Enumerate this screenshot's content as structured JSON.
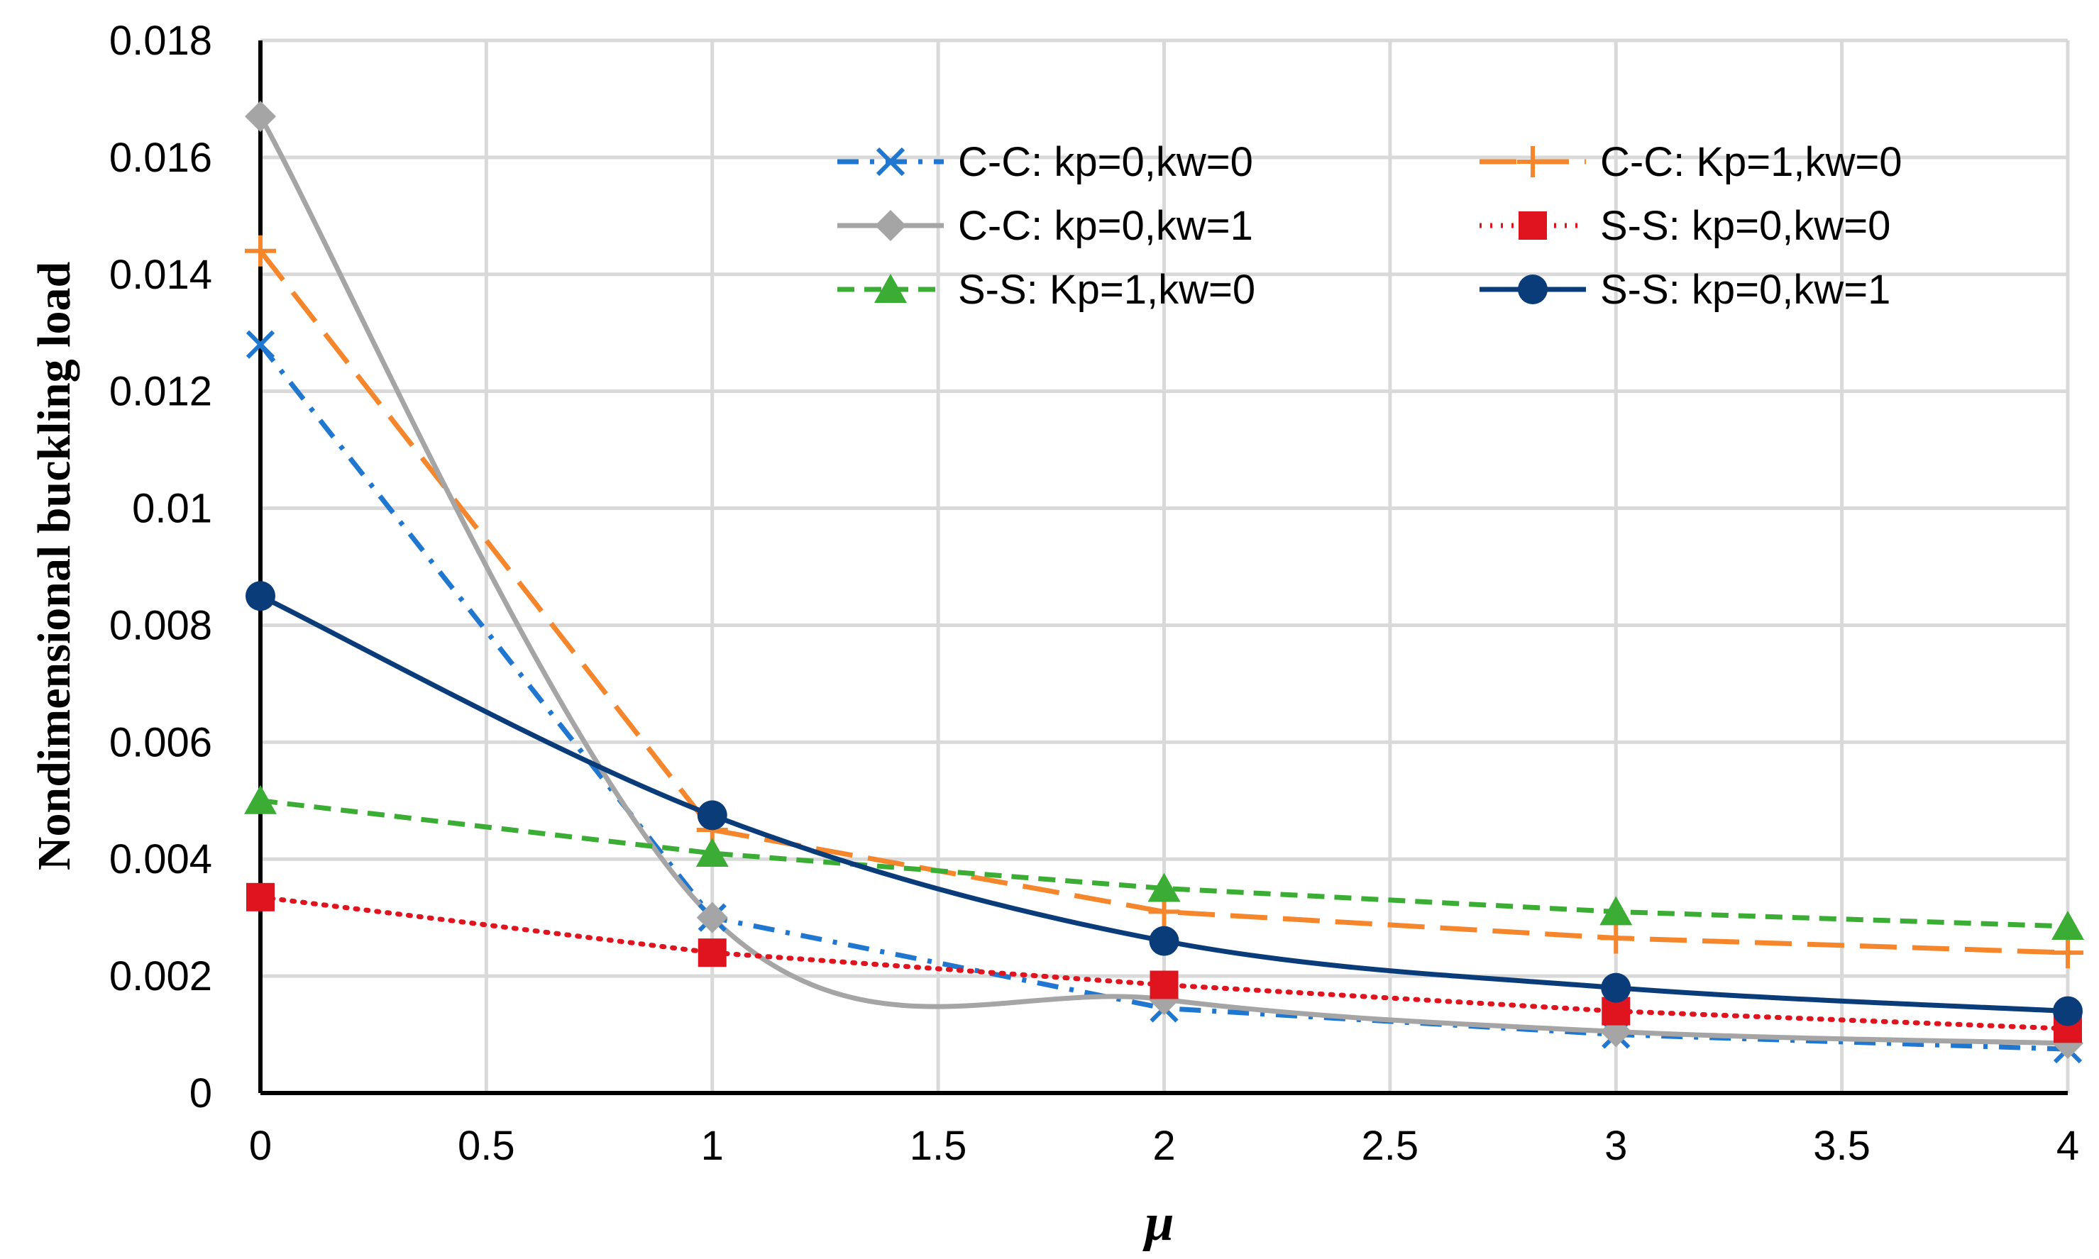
{
  "chart_data": {
    "type": "line",
    "title": "",
    "xlabel": "μ",
    "ylabel": "Nondimensional buckling load",
    "xlim": [
      0,
      4
    ],
    "ylim": [
      0,
      0.018
    ],
    "grid": true,
    "legend_position": "top-right",
    "x_ticks": [
      0,
      0.5,
      1,
      1.5,
      2,
      2.5,
      3,
      3.5,
      4
    ],
    "x_tick_labels": [
      "0",
      "0.5",
      "1",
      "1.5",
      "2",
      "2.5",
      "3",
      "3.5",
      "4"
    ],
    "y_ticks": [
      0,
      0.002,
      0.004,
      0.006,
      0.008,
      0.01,
      0.012,
      0.014,
      0.016,
      0.018
    ],
    "y_tick_labels": [
      "0",
      "0.002",
      "0.004",
      "0.006",
      "0.008",
      "0.01",
      "0.012",
      "0.014",
      "0.016",
      "0.018"
    ],
    "x": [
      0,
      1,
      2,
      3,
      4
    ],
    "series": [
      {
        "name": "C-C: kp=0,kw=0",
        "color": "#1f77d0",
        "dash": "dashdot",
        "marker": "x",
        "smooth": false,
        "values": [
          0.0128,
          0.003,
          0.00145,
          0.001,
          0.00075
        ]
      },
      {
        "name": "C-C: Kp=1,kw=0",
        "color": "#f5862c",
        "dash": "longdash",
        "marker": "plus",
        "smooth": false,
        "values": [
          0.0144,
          0.0045,
          0.0031,
          0.00265,
          0.0024
        ]
      },
      {
        "name": "C-C: kp=0,kw=1",
        "color": "#a5a5a5",
        "dash": "solid",
        "marker": "diamond",
        "smooth": true,
        "values": [
          0.0167,
          0.003,
          0.0016,
          0.00105,
          0.00085
        ]
      },
      {
        "name": "S-S: kp=0,kw=0",
        "color": "#e0141e",
        "dash": "dotted",
        "marker": "square",
        "smooth": false,
        "values": [
          0.00335,
          0.0024,
          0.00185,
          0.0014,
          0.0011
        ]
      },
      {
        "name": "S-S: Kp=1,kw=0",
        "color": "#3cad34",
        "dash": "dashed",
        "marker": "triangle",
        "smooth": false,
        "values": [
          0.005,
          0.0041,
          0.0035,
          0.0031,
          0.00285
        ]
      },
      {
        "name": "S-S: kp=0,kw=1",
        "color": "#0b3c7a",
        "dash": "solid",
        "marker": "circle",
        "smooth": true,
        "values": [
          0.0085,
          0.00475,
          0.0026,
          0.0018,
          0.0014
        ]
      }
    ]
  }
}
